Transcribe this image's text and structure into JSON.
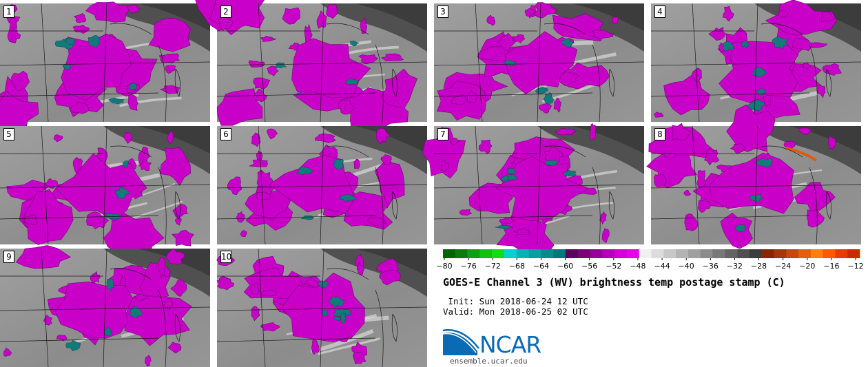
{
  "panels": [
    "1",
    "2",
    "3",
    "4",
    "5",
    "6",
    "7",
    "8",
    "9",
    "10"
  ],
  "colorbar": {
    "ticks": [
      "−80",
      "−76",
      "−72",
      "−68",
      "−64",
      "−60",
      "−56",
      "−52",
      "−48",
      "−44",
      "−40",
      "−36",
      "−32",
      "−28",
      "−24",
      "−20",
      "−16",
      "−12"
    ],
    "colors": [
      "#006400",
      "#0a7a0a",
      "#0fa00f",
      "#12c012",
      "#14dc14",
      "#00d2d2",
      "#00b4b4",
      "#00a0a0",
      "#008c8c",
      "#007878",
      "#5a005a",
      "#780078",
      "#960096",
      "#b400b4",
      "#d200d2",
      "#e600e6",
      "#f0f0f0",
      "#dcdcdc",
      "#c8c8c8",
      "#b4b4b4",
      "#a0a0a0",
      "#8c8c8c",
      "#787878",
      "#646464",
      "#505050",
      "#3c3c3c",
      "#8b2500",
      "#a0380a",
      "#c04a10",
      "#e06010",
      "#ff7f10",
      "#ff5a00",
      "#e63c00",
      "#cc2800"
    ]
  },
  "title": "GOES-E Channel 3 (WV) brightness temp postage stamp (C)",
  "init": " Init: Sun 2018-06-24 12 UTC",
  "valid": "Valid: Mon 2018-06-25 02 UTC",
  "logo": {
    "name": "NCAR",
    "url": "ensemble.ucar.edu",
    "brand_color": "#0a6ab3"
  },
  "map_colors": {
    "moist": "#c800c8",
    "cold_core": "#127a7a",
    "background": "#8c8c8c",
    "dry": "#3c3c3c",
    "warm": "#e05a10"
  }
}
